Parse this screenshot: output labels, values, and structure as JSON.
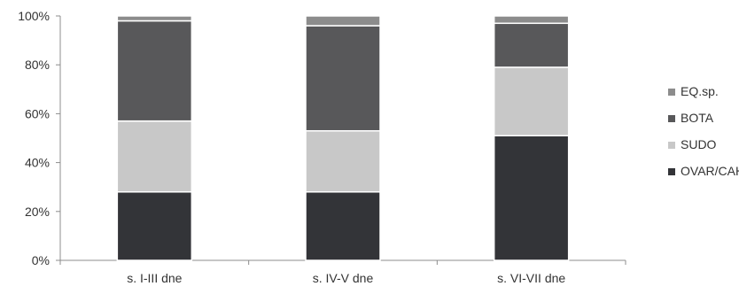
{
  "chart_data": {
    "type": "bar",
    "stacked": true,
    "percent_scale": true,
    "categories": [
      "s. I-III dne",
      "s. IV-V dne",
      "s. VI-VII dne"
    ],
    "series": [
      {
        "name": "OVAR/CAHI",
        "color": "#333438",
        "values": [
          28,
          28,
          51
        ]
      },
      {
        "name": "SUDO",
        "color": "#c8c8c8",
        "values": [
          29,
          25,
          28
        ]
      },
      {
        "name": "BOTA",
        "color": "#58585a",
        "values": [
          41,
          43,
          18
        ]
      },
      {
        "name": "EQ.sp.",
        "color": "#8c8c8c",
        "values": [
          2,
          4,
          3
        ]
      }
    ],
    "ylim": [
      0,
      100
    ],
    "yticks": [
      "0%",
      "20%",
      "40%",
      "60%",
      "80%",
      "100%"
    ],
    "title": "",
    "xlabel": "",
    "ylabel": "",
    "grid": false,
    "legend_position": "right"
  }
}
